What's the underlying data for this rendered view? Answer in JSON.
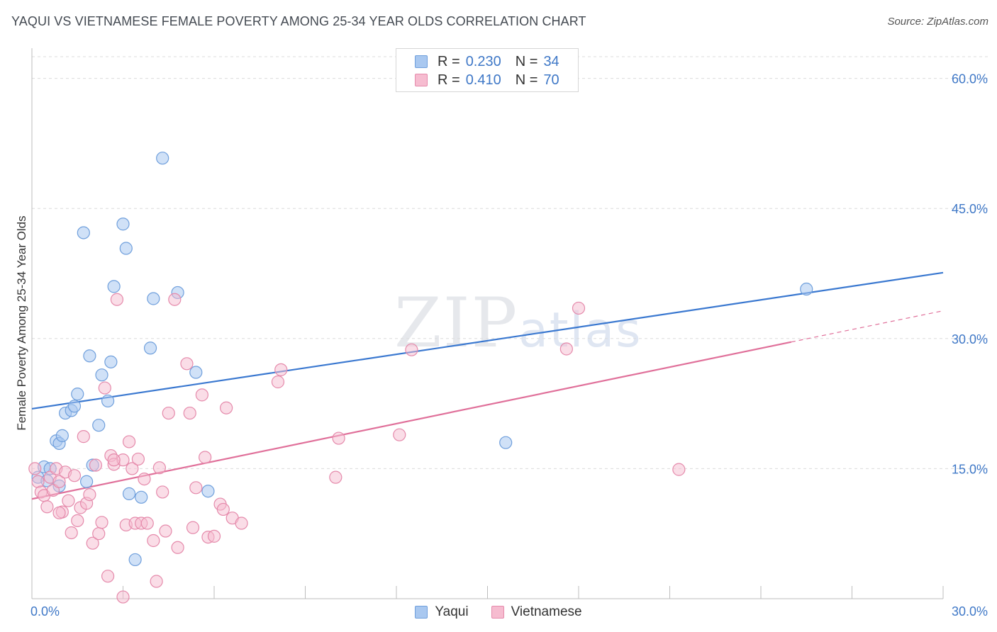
{
  "title": "YAQUI VS VIETNAMESE FEMALE POVERTY AMONG 25-34 YEAR OLDS CORRELATION CHART",
  "source": "Source: ZipAtlas.com",
  "watermark": {
    "zip": "ZIP",
    "atlas": "atlas"
  },
  "legend": [
    {
      "r_label": "R =",
      "r_value": "0.230",
      "n_label": "N =",
      "n_value": "34",
      "color": "#a9c8f0",
      "border": "#6f9fdc"
    },
    {
      "r_label": "R =",
      "r_value": "0.410",
      "n_label": "N =",
      "n_value": "70",
      "color": "#f6bcd0",
      "border": "#e58aab"
    }
  ],
  "bottom_legend": [
    "Yaqui",
    "Vietnamese"
  ],
  "chart_data": {
    "type": "scatter",
    "title": "YAQUI VS VIETNAMESE FEMALE POVERTY AMONG 25-34 YEAR OLDS CORRELATION CHART",
    "xlabel": "",
    "ylabel": "Female Poverty Among 25-34 Year Olds",
    "xlim": [
      0,
      30
    ],
    "ylim": [
      0,
      60
    ],
    "x_tick_labels": [
      "0.0%",
      "30.0%"
    ],
    "y_ticks": [
      15,
      30,
      45,
      60
    ],
    "y_tick_labels": [
      "15.0%",
      "30.0%",
      "45.0%",
      "60.0%"
    ],
    "grid": true,
    "legend_position": "top-center",
    "colors": {
      "Yaqui": "#3a78d0",
      "Vietnamese": "#e0709a"
    },
    "series": [
      {
        "name": "Yaqui",
        "points": [
          [
            0.2,
            14.0
          ],
          [
            0.4,
            15.2
          ],
          [
            0.5,
            13.6
          ],
          [
            0.8,
            18.2
          ],
          [
            0.9,
            13.0
          ],
          [
            0.9,
            17.9
          ],
          [
            1.0,
            18.8
          ],
          [
            1.1,
            21.4
          ],
          [
            1.3,
            21.7
          ],
          [
            1.4,
            22.2
          ],
          [
            1.5,
            23.6
          ],
          [
            1.7,
            42.2
          ],
          [
            1.8,
            13.5
          ],
          [
            1.9,
            28.0
          ],
          [
            2.0,
            15.4
          ],
          [
            2.2,
            20.0
          ],
          [
            2.3,
            25.8
          ],
          [
            2.5,
            22.8
          ],
          [
            2.6,
            27.3
          ],
          [
            2.7,
            36.0
          ],
          [
            3.0,
            43.2
          ],
          [
            3.1,
            40.4
          ],
          [
            3.2,
            12.1
          ],
          [
            3.4,
            4.5
          ],
          [
            3.6,
            11.7
          ],
          [
            3.9,
            28.9
          ],
          [
            4.0,
            34.6
          ],
          [
            4.3,
            50.8
          ],
          [
            4.8,
            35.3
          ],
          [
            5.4,
            26.1
          ],
          [
            5.8,
            12.4
          ],
          [
            15.6,
            18.0
          ],
          [
            25.5,
            35.7
          ],
          [
            0.6,
            15.0
          ]
        ]
      },
      {
        "name": "Vietnamese",
        "points": [
          [
            0.1,
            15.0
          ],
          [
            0.2,
            13.5
          ],
          [
            0.3,
            12.3
          ],
          [
            0.4,
            11.9
          ],
          [
            0.5,
            10.6
          ],
          [
            0.6,
            14.0
          ],
          [
            0.7,
            12.5
          ],
          [
            0.8,
            15.0
          ],
          [
            0.9,
            13.5
          ],
          [
            1.0,
            10.0
          ],
          [
            1.1,
            14.6
          ],
          [
            1.2,
            11.3
          ],
          [
            1.3,
            7.6
          ],
          [
            1.4,
            14.2
          ],
          [
            1.5,
            9.0
          ],
          [
            1.6,
            10.5
          ],
          [
            1.7,
            18.7
          ],
          [
            1.8,
            11.0
          ],
          [
            1.9,
            12.0
          ],
          [
            2.0,
            6.4
          ],
          [
            2.1,
            15.4
          ],
          [
            2.2,
            7.5
          ],
          [
            2.3,
            8.8
          ],
          [
            2.4,
            24.3
          ],
          [
            2.5,
            2.6
          ],
          [
            2.6,
            16.5
          ],
          [
            2.7,
            15.5
          ],
          [
            2.8,
            34.5
          ],
          [
            3.0,
            16.0
          ],
          [
            3.1,
            8.5
          ],
          [
            3.2,
            18.1
          ],
          [
            3.3,
            15.0
          ],
          [
            3.4,
            8.7
          ],
          [
            3.5,
            16.1
          ],
          [
            3.6,
            8.7
          ],
          [
            3.7,
            13.8
          ],
          [
            3.8,
            8.7
          ],
          [
            4.0,
            6.7
          ],
          [
            4.1,
            2.0
          ],
          [
            4.2,
            15.1
          ],
          [
            4.3,
            12.3
          ],
          [
            4.4,
            7.8
          ],
          [
            4.5,
            21.4
          ],
          [
            4.7,
            34.5
          ],
          [
            4.8,
            5.9
          ],
          [
            5.1,
            27.1
          ],
          [
            5.2,
            21.4
          ],
          [
            5.3,
            8.2
          ],
          [
            5.4,
            12.8
          ],
          [
            5.6,
            23.5
          ],
          [
            5.7,
            16.3
          ],
          [
            5.8,
            7.1
          ],
          [
            6.0,
            7.2
          ],
          [
            6.2,
            10.9
          ],
          [
            6.3,
            10.3
          ],
          [
            6.4,
            22.0
          ],
          [
            6.6,
            9.3
          ],
          [
            6.9,
            8.7
          ],
          [
            8.1,
            25.0
          ],
          [
            8.2,
            26.4
          ],
          [
            10.0,
            14.0
          ],
          [
            10.1,
            18.5
          ],
          [
            12.1,
            18.9
          ],
          [
            12.5,
            28.7
          ],
          [
            17.6,
            28.8
          ],
          [
            18.0,
            33.5
          ],
          [
            21.3,
            14.9
          ],
          [
            3.0,
            0.2
          ],
          [
            0.9,
            9.9
          ],
          [
            2.7,
            16.0
          ]
        ]
      }
    ],
    "trendlines": [
      {
        "series": "Yaqui",
        "x": [
          0,
          30
        ],
        "y": [
          21.9,
          37.6
        ]
      },
      {
        "series": "Vietnamese",
        "x": [
          0,
          25.0
        ],
        "y": [
          11.5,
          29.6
        ]
      },
      {
        "series": "Vietnamese",
        "style": "dashed",
        "x": [
          25.0,
          30
        ],
        "y": [
          29.6,
          33.2
        ]
      }
    ]
  }
}
